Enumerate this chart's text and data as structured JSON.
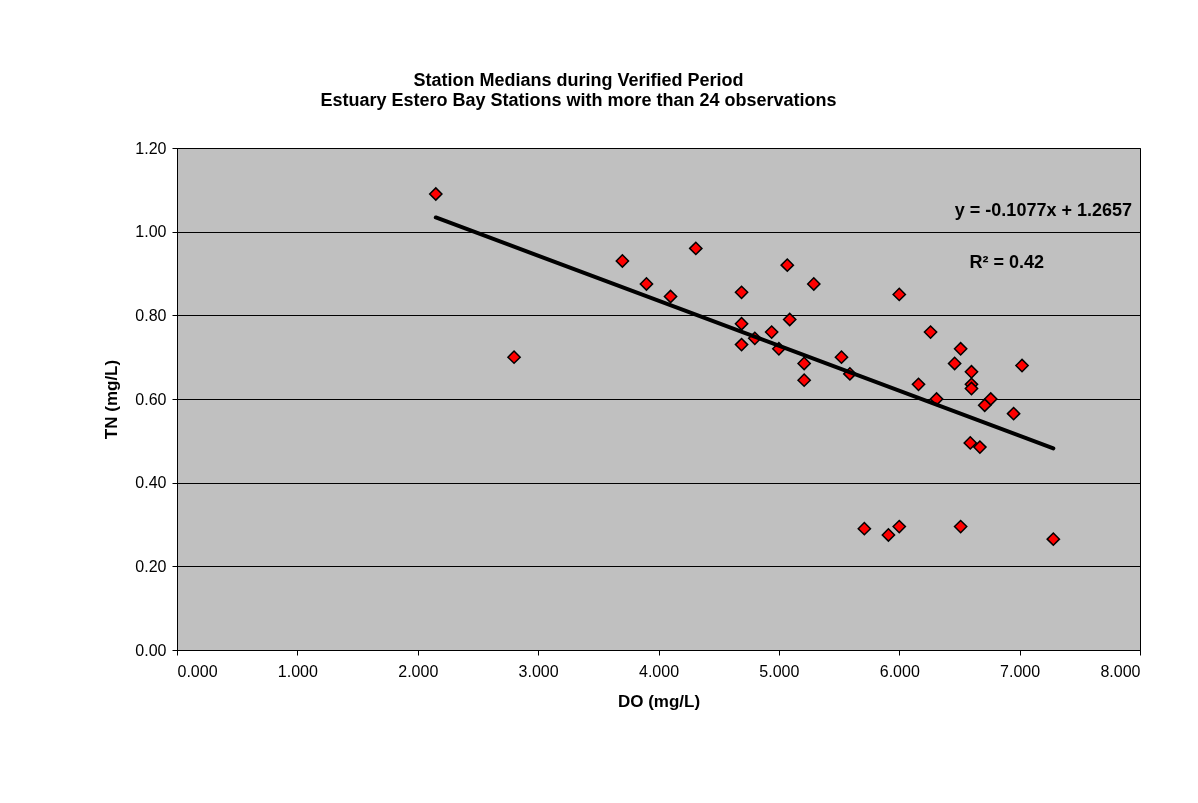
{
  "chart_data": {
    "type": "scatter",
    "title": [
      "Station Medians during Verified Period",
      "Estuary Estero Bay Stations with more than 24 observations"
    ],
    "xlabel": "DO (mg/L)",
    "ylabel": "TN (mg/L)",
    "xlim": [
      0,
      8
    ],
    "xticks": [
      {
        "value": 0,
        "label": "0.000"
      },
      {
        "value": 1,
        "label": "1.000"
      },
      {
        "value": 2,
        "label": "2.000"
      },
      {
        "value": 3,
        "label": "3.000"
      },
      {
        "value": 4,
        "label": "4.000"
      },
      {
        "value": 5,
        "label": "5.000"
      },
      {
        "value": 6,
        "label": "6.000"
      },
      {
        "value": 7,
        "label": "7.000"
      },
      {
        "value": 8,
        "label": "8.000"
      }
    ],
    "ylim": [
      0,
      1.2
    ],
    "yticks": [
      {
        "value": 0,
        "label": "0.00"
      },
      {
        "value": 0.2,
        "label": "0.20"
      },
      {
        "value": 0.4,
        "label": "0.40"
      },
      {
        "value": 0.6,
        "label": "0.60"
      },
      {
        "value": 0.8,
        "label": "0.80"
      },
      {
        "value": 1.0,
        "label": "1.00"
      },
      {
        "value": 1.2,
        "label": "1.20"
      }
    ],
    "grid": "y",
    "series": [
      {
        "color": "#ff0000",
        "marker": "diamond",
        "x": [
          2.15,
          2.8,
          3.7,
          3.9,
          4.1,
          4.31,
          4.69,
          5.07,
          5.29,
          6.0,
          4.69,
          4.8,
          4.69,
          4.94,
          5.09,
          5.0,
          5.21,
          5.21,
          5.52,
          5.59,
          6.26,
          6.51,
          6.46,
          6.6,
          6.6,
          6.6,
          7.02,
          6.16,
          6.31,
          6.76,
          6.71,
          6.95,
          6.59,
          6.67,
          5.71,
          5.91,
          6.0,
          6.51,
          7.28
        ],
        "values": [
          1.09,
          0.7,
          0.93,
          0.875,
          0.845,
          0.96,
          0.855,
          0.92,
          0.875,
          0.85,
          0.78,
          0.745,
          0.73,
          0.76,
          0.79,
          0.72,
          0.685,
          0.645,
          0.7,
          0.66,
          0.76,
          0.72,
          0.685,
          0.665,
          0.635,
          0.625,
          0.68,
          0.635,
          0.6,
          0.6,
          0.585,
          0.565,
          0.495,
          0.485,
          0.29,
          0.275,
          0.295,
          0.295,
          0.265
        ]
      },
      {
        "type": "line",
        "color": "#000000",
        "x": [
          2.15,
          7.28
        ],
        "values": [
          1.034,
          0.482
        ]
      }
    ],
    "annotations": [
      "y = -0.1077x + 1.2657",
      "R² = 0.42"
    ]
  }
}
